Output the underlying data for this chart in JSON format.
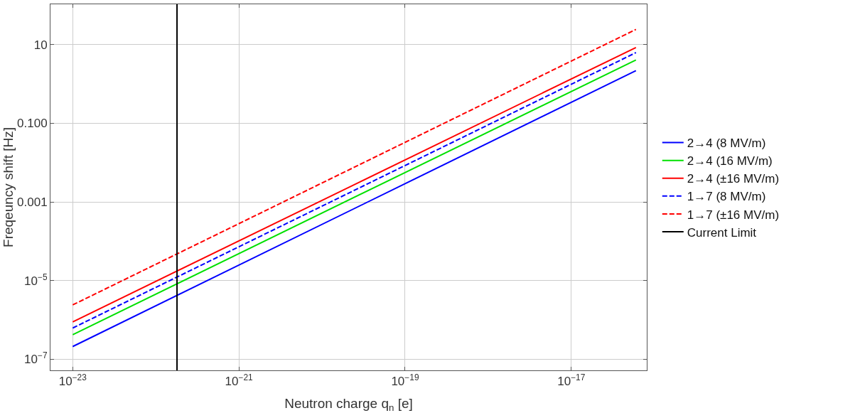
{
  "chart_data": {
    "type": "line",
    "xlabel": "Neutron charge q$_{n}$ [e]",
    "ylabel": "Freqeuncy shift [Hz]",
    "log": "xy",
    "grid": true,
    "legend": "right",
    "xlim": [
      5.4e-24,
      8.1e-17
    ],
    "ylim": [
      5.2e-08,
      107
    ],
    "xticks": [
      {
        "value": 1e-23,
        "label": "10$^{−23}$"
      },
      {
        "value": 1e-21,
        "label": "10$^{−21}$"
      },
      {
        "value": 1e-19,
        "label": "10$^{−19}$"
      },
      {
        "value": 1e-17,
        "label": "10$^{−17}$"
      }
    ],
    "yticks": [
      {
        "value": 1e-07,
        "label": "10$^{−7}$"
      },
      {
        "value": 1e-05,
        "label": "10$^{−5}$"
      },
      {
        "value": 0.001,
        "label": "0.001"
      },
      {
        "value": 0.1,
        "label": "0.100"
      },
      10
    ],
    "x": [
      1e-23,
      6e-17
    ],
    "series": [
      {
        "name": "2→4 (8 MV/m)",
        "color": "#0000ff",
        "values": [
          2.1e-07,
          2.2
        ],
        "line_style": "solid"
      },
      {
        "name": "2→4 (16 MV/m)",
        "color": "#00e000",
        "values": [
          4.2e-07,
          4.1
        ],
        "line_style": "solid"
      },
      {
        "name": "2→4 (±16 MV/m)",
        "color": "#ff0000",
        "values": [
          8.9e-07,
          8.5
        ],
        "line_style": "solid"
      },
      {
        "name": "1→7 (8 MV/m)",
        "color": "#0000ff",
        "values": [
          6.2e-07,
          6.3
        ],
        "line_style": "dashed"
      },
      {
        "name": "1→7 (±16 MV/m)",
        "color": "#ff0000",
        "values": [
          2.4e-06,
          24.5
        ],
        "line_style": "dashed"
      },
      {
        "name": "Current Limit",
        "color": "#000000",
        "x": [
          1.8e-22,
          1.8e-22
        ],
        "values": [
          5.2e-08,
          107
        ],
        "line_style": "solid"
      }
    ]
  }
}
